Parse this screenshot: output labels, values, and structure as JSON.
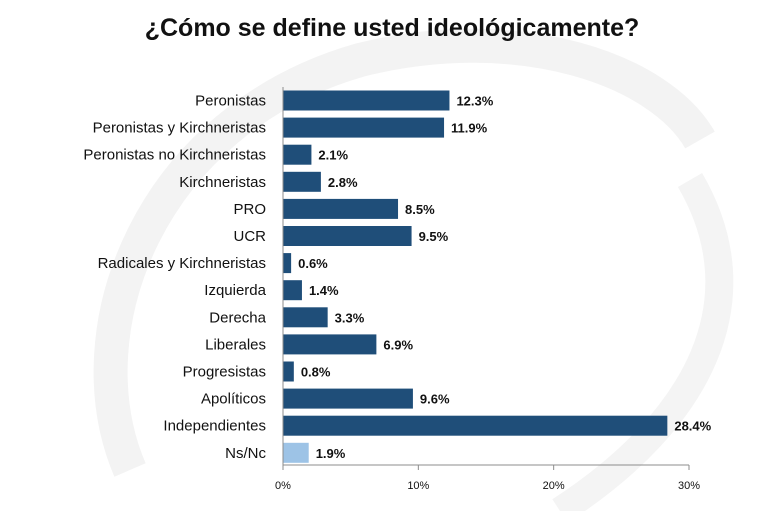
{
  "chart_data": {
    "type": "bar",
    "orientation": "horizontal",
    "title": "¿Cómo se define usted ideológicamente?",
    "categories": [
      "Peronistas",
      "Peronistas y Kirchneristas",
      "Peronistas no Kirchneristas",
      "Kirchneristas",
      "PRO",
      "UCR",
      "Radicales y Kirchneristas",
      "Izquierda",
      "Derecha",
      "Liberales",
      "Progresistas",
      "Apolíticos",
      "Independientes",
      "Ns/Nc"
    ],
    "values": [
      12.3,
      11.9,
      2.1,
      2.8,
      8.5,
      9.5,
      0.6,
      1.4,
      3.3,
      6.9,
      0.8,
      9.6,
      28.4,
      1.9
    ],
    "value_labels": [
      "12.3%",
      "11.9%",
      "2.1%",
      "2.8%",
      "8.5%",
      "9.5%",
      "0.6%",
      "1.4%",
      "3.3%",
      "6.9%",
      "0.8%",
      "9.6%",
      "28.4%",
      "1.9%"
    ],
    "xlim": [
      0,
      30
    ],
    "xticks": [
      0,
      10,
      20,
      30
    ],
    "xtick_labels": [
      "0%",
      "10%",
      "20%",
      "30%"
    ],
    "xlabel": "",
    "ylabel": "",
    "colors": {
      "bar": "#1F4E79",
      "highlight": "#9DC3E6"
    },
    "highlight_category": "Ns/Nc",
    "grid": false,
    "legend": "none"
  }
}
